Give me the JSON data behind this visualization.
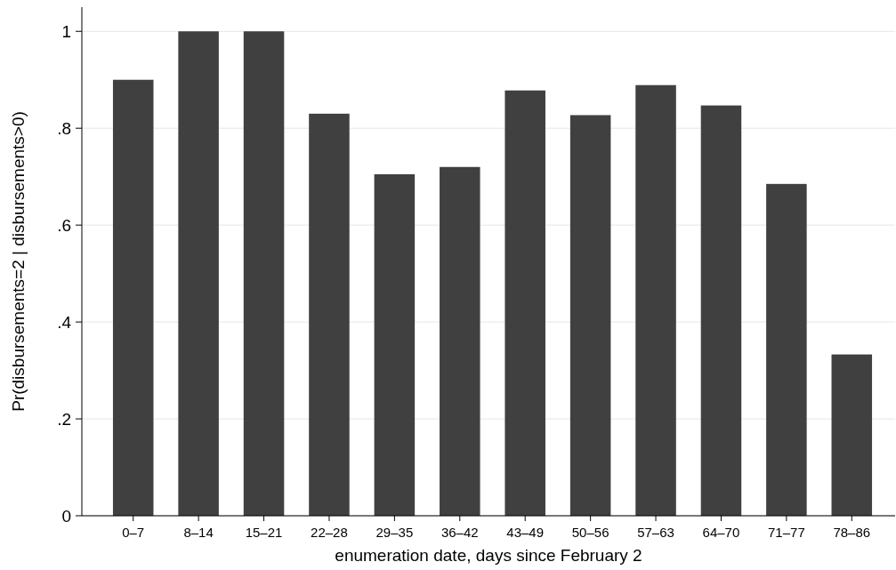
{
  "chart_data": {
    "type": "bar",
    "xlabel": "enumeration date, days since February 2",
    "ylabel": "Pr(disbursements=2 | disbursements>0)",
    "categories": [
      "0–7",
      "8–14",
      "15–21",
      "22–28",
      "29–35",
      "36–42",
      "43–49",
      "50–56",
      "57–63",
      "64–70",
      "71–77",
      "78–86"
    ],
    "values": [
      0.9,
      1,
      1,
      0.83,
      0.705,
      0.72,
      0.878,
      0.827,
      0.889,
      0.847,
      0.685,
      0.333
    ],
    "color": "#404040",
    "ylim": [
      0,
      1.05
    ],
    "yticks": [
      {
        "value": 0,
        "label": "0"
      },
      {
        "value": 0.2,
        "label": ".2"
      },
      {
        "value": 0.4,
        "label": ".4"
      },
      {
        "value": 0.6,
        "label": ".6"
      },
      {
        "value": 0.8,
        "label": ".8"
      },
      {
        "value": 1,
        "label": "1"
      }
    ],
    "grid": "y"
  }
}
